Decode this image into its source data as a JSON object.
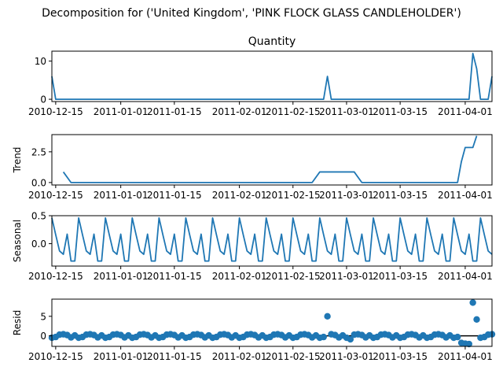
{
  "figure": {
    "suptitle": "Decomposition for ('United Kingdom', 'PINK FLOCK GLASS CANDLEHOLDER')"
  },
  "colors": {
    "line": "#1f77b4",
    "axes": "#000000",
    "zero_line": "#000000"
  },
  "chart_data": [
    {
      "type": "line",
      "title": "Quantity",
      "ylabel": "",
      "x_start": "2010-12-14",
      "x_end": "2011-04-08",
      "x_ticks": [
        "2010-12-15",
        "2011-01-01",
        "2011-01-15",
        "2011-02-01",
        "2011-02-15",
        "2011-03-01",
        "2011-03-15",
        "2011-04-01"
      ],
      "ylim": [
        -0.6,
        12.6
      ],
      "y_ticks": [
        0,
        10
      ],
      "y_tick_labels": [
        "0",
        "10"
      ],
      "points": [
        {
          "x": "2010-12-14",
          "y": 6
        },
        {
          "x": "2010-12-15",
          "y": 0
        },
        {
          "x": "2011-02-23",
          "y": 0
        },
        {
          "x": "2011-02-24",
          "y": 6
        },
        {
          "x": "2011-02-25",
          "y": 0
        },
        {
          "x": "2011-04-02",
          "y": 0
        },
        {
          "x": "2011-04-03",
          "y": 12
        },
        {
          "x": "2011-04-04",
          "y": 8
        },
        {
          "x": "2011-04-05",
          "y": 0
        },
        {
          "x": "2011-04-06",
          "y": 0
        },
        {
          "x": "2011-04-07",
          "y": 0
        },
        {
          "x": "2011-04-08",
          "y": 6
        }
      ]
    },
    {
      "type": "line",
      "title": "",
      "ylabel": "Trend",
      "x_start": "2010-12-14",
      "x_end": "2011-04-08",
      "x_ticks": [
        "2010-12-15",
        "2011-01-01",
        "2011-01-15",
        "2011-02-01",
        "2011-02-15",
        "2011-03-01",
        "2011-03-15",
        "2011-04-01"
      ],
      "ylim": [
        -0.2,
        3.9
      ],
      "y_ticks": [
        0,
        2.5
      ],
      "y_tick_labels": [
        "0.0",
        "2.5"
      ],
      "points": [
        {
          "x": "2010-12-17",
          "y": 0.86
        },
        {
          "x": "2010-12-19",
          "y": 0
        },
        {
          "x": "2011-02-20",
          "y": 0
        },
        {
          "x": "2011-02-22",
          "y": 0.86
        },
        {
          "x": "2011-03-03",
          "y": 0.86
        },
        {
          "x": "2011-03-05",
          "y": 0
        },
        {
          "x": "2011-03-30",
          "y": 0
        },
        {
          "x": "2011-03-31",
          "y": 1.7
        },
        {
          "x": "2011-04-01",
          "y": 2.85
        },
        {
          "x": "2011-04-02",
          "y": 2.85
        },
        {
          "x": "2011-04-03",
          "y": 2.85
        },
        {
          "x": "2011-04-04",
          "y": 3.8
        }
      ]
    },
    {
      "type": "line",
      "title": "",
      "ylabel": "Seasonal",
      "x_start": "2010-12-14",
      "x_end": "2011-04-08",
      "x_ticks": [
        "2010-12-15",
        "2011-01-01",
        "2011-01-15",
        "2011-02-01",
        "2011-02-15",
        "2011-03-01",
        "2011-03-15",
        "2011-04-01"
      ],
      "ylim": [
        -0.4,
        0.5
      ],
      "y_ticks": [
        0,
        0.5
      ],
      "y_tick_labels": [
        "0.0",
        "0.5"
      ],
      "period": 7,
      "weekly_pattern": [
        0.46,
        0.16,
        -0.13,
        -0.19,
        0.17,
        -0.31,
        -0.31
      ]
    },
    {
      "type": "scatter",
      "title": "",
      "ylabel": "Resid",
      "x_start": "2010-12-14",
      "x_end": "2011-04-08",
      "x_ticks": [
        "2010-12-15",
        "2011-01-01",
        "2011-01-15",
        "2011-02-01",
        "2011-02-15",
        "2011-03-01",
        "2011-03-15",
        "2011-04-01"
      ],
      "ylim": [
        -2.7,
        9.4
      ],
      "y_ticks": [
        0,
        5
      ],
      "y_tick_labels": [
        "0",
        "5"
      ],
      "zero_line": true,
      "baseline_pattern": [
        -0.5,
        -0.3,
        0.3,
        0.4,
        0.2,
        -0.4,
        0.1
      ],
      "outliers": [
        {
          "x": "2011-02-24",
          "y": 5.0
        },
        {
          "x": "2011-03-02",
          "y": -0.9
        },
        {
          "x": "2011-03-31",
          "y": -1.8
        },
        {
          "x": "2011-04-01",
          "y": -2.0
        },
        {
          "x": "2011-04-02",
          "y": -2.1
        },
        {
          "x": "2011-04-03",
          "y": 8.5
        },
        {
          "x": "2011-04-04",
          "y": 4.2
        }
      ]
    }
  ]
}
